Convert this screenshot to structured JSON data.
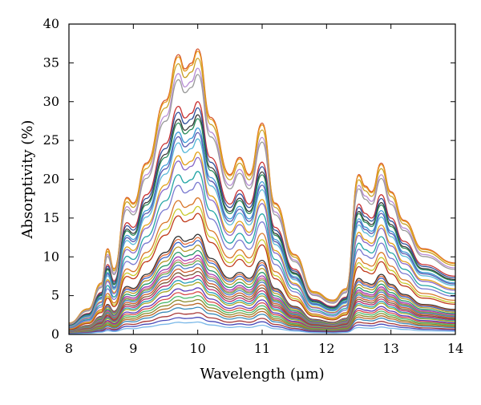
{
  "chart_data": {
    "type": "line",
    "xlabel": "Wavelength (μm)",
    "ylabel": "Absorptivity (%)",
    "xlim": [
      8,
      14
    ],
    "ylim": [
      0,
      40
    ],
    "xticks": [
      "8",
      "9",
      "10",
      "11",
      "12",
      "13",
      "14"
    ],
    "yticks": [
      "0",
      "5",
      "10",
      "15",
      "20",
      "25",
      "30",
      "35",
      "40"
    ],
    "grid": false,
    "legend": "none",
    "x": [
      8.0,
      8.3,
      8.5,
      8.6,
      8.7,
      8.9,
      9.0,
      9.2,
      9.5,
      9.7,
      9.8,
      9.9,
      10.0,
      10.2,
      10.5,
      10.65,
      10.8,
      11.0,
      11.2,
      11.5,
      11.8,
      12.1,
      12.3,
      12.5,
      12.6,
      12.7,
      12.85,
      13.0,
      13.2,
      13.5,
      14.0
    ],
    "shape": [
      0.04,
      0.09,
      0.18,
      0.3,
      0.23,
      0.48,
      0.46,
      0.6,
      0.82,
      0.98,
      0.93,
      0.95,
      1.0,
      0.76,
      0.56,
      0.62,
      0.56,
      0.74,
      0.46,
      0.28,
      0.15,
      0.12,
      0.16,
      0.56,
      0.52,
      0.5,
      0.6,
      0.5,
      0.4,
      0.3,
      0.25
    ],
    "peak_values": [
      36.8,
      36.5,
      35.6,
      34.3,
      33.5,
      30.0,
      29.2,
      28.3,
      27.8,
      26.6,
      26.0,
      25.2,
      23.5,
      22.8,
      21.0,
      19.6,
      17.6,
      16.5,
      15.6,
      12.9,
      12.5,
      12.1,
      11.5,
      10.8,
      10.2,
      9.8,
      9.5,
      9.1,
      8.6,
      8.1,
      7.6,
      7.1,
      6.7,
      6.0,
      5.5,
      5.0,
      4.5,
      4.0,
      3.5,
      2.8,
      2.2,
      1.6
    ],
    "colors": [
      "#d6552b",
      "#e89b1e",
      "#c9a227",
      "#b88dd6",
      "#9a9a9a",
      "#c83232",
      "#2f4f9a",
      "#3a3a3a",
      "#2a8c5a",
      "#3c9ad6",
      "#5a5ab0",
      "#58b8d8",
      "#e3a21a",
      "#8a6ac8",
      "#23a5a5",
      "#7a7ad0",
      "#d9772a",
      "#c9c92a",
      "#c03a1a",
      "#333333",
      "#e06a3a",
      "#3a66c8",
      "#b89a2a",
      "#2a9a6a",
      "#9a3ab0",
      "#d86a8a",
      "#6aa84a",
      "#4a7ac8",
      "#ca5a2a",
      "#7a5a3a",
      "#b82a6a",
      "#2aa0b8",
      "#a8a82a",
      "#5a3ab8",
      "#d84a4a",
      "#4ab86a",
      "#8a8a2a",
      "#b86a2a",
      "#3a8ab8",
      "#a83a3a",
      "#4a4ab8",
      "#7ab8e8"
    ]
  }
}
